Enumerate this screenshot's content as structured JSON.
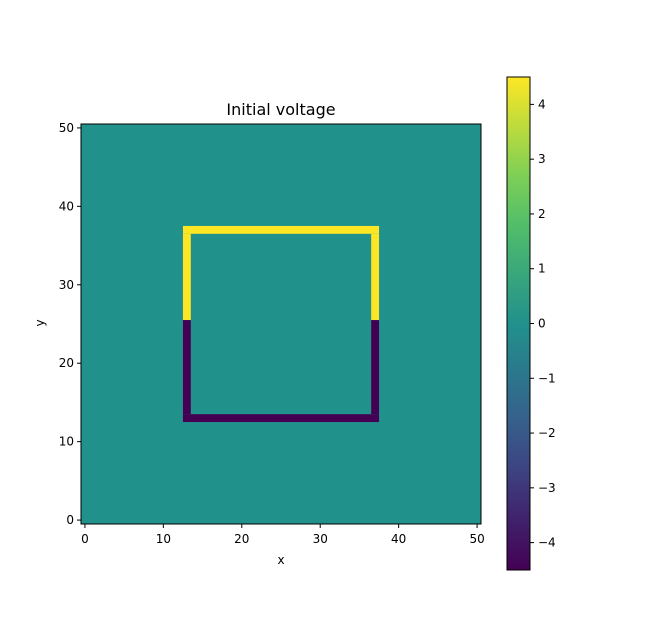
{
  "chart_data": {
    "type": "heatmap",
    "title": "Initial voltage",
    "xlabel": "x",
    "ylabel": "y",
    "grid": false,
    "grid_size": 51,
    "xlim": [
      -0.5,
      50.5
    ],
    "ylim": [
      -0.5,
      50.5
    ],
    "xticks": [
      0,
      10,
      20,
      30,
      40,
      50
    ],
    "yticks": [
      0,
      10,
      20,
      30,
      40,
      50
    ],
    "background_value": 0,
    "regions": [
      {
        "name": "top edge",
        "x": [
          13,
          37
        ],
        "y": [
          37,
          37
        ],
        "value": 4.5
      },
      {
        "name": "upper left side",
        "x": [
          13,
          13
        ],
        "y": [
          26,
          36
        ],
        "value": 4.5
      },
      {
        "name": "upper right side",
        "x": [
          37,
          37
        ],
        "y": [
          26,
          36
        ],
        "value": 4.5
      },
      {
        "name": "bottom edge",
        "x": [
          13,
          37
        ],
        "y": [
          13,
          13
        ],
        "value": -4.5
      },
      {
        "name": "lower left side",
        "x": [
          13,
          13
        ],
        "y": [
          14,
          25
        ],
        "value": -4.5
      },
      {
        "name": "lower right side",
        "x": [
          37,
          37
        ],
        "y": [
          14,
          25
        ],
        "value": -4.5
      }
    ],
    "colorbar": {
      "vmin": -4.5,
      "vmax": 4.5,
      "colormap": "viridis",
      "ticks": [
        -4,
        -3,
        -2,
        -1,
        0,
        1,
        2,
        3,
        4
      ],
      "tick_labels": [
        "−4",
        "−3",
        "−2",
        "−1",
        "0",
        "1",
        "2",
        "3",
        "4"
      ]
    },
    "colors": {
      "min": "#440154",
      "mid": "#21918c",
      "max": "#fde725"
    }
  }
}
